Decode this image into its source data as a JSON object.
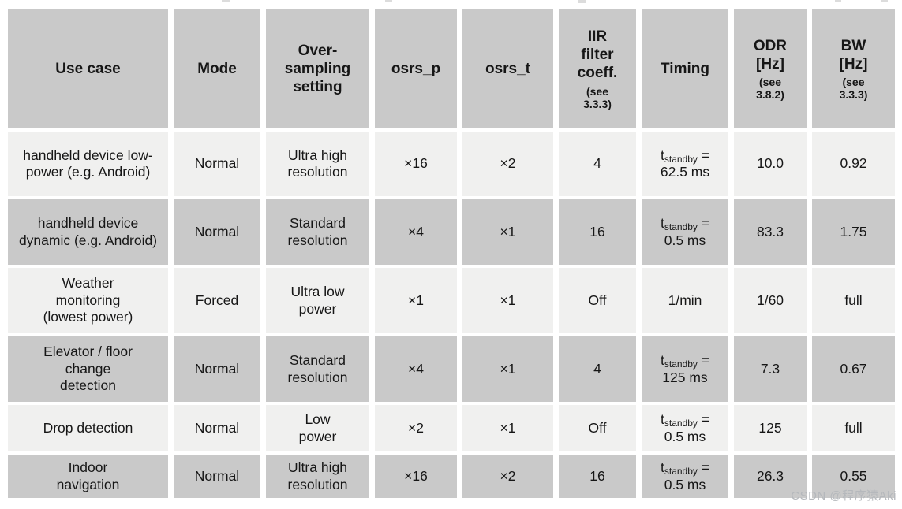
{
  "table": {
    "timing_prefix": "t",
    "timing_sub_label": "standby",
    "timing_equals": "=",
    "columns": [
      {
        "key": "use_case",
        "label": "Use case",
        "note": ""
      },
      {
        "key": "mode",
        "label": "Mode",
        "note": ""
      },
      {
        "key": "oversampling",
        "label": "Over-\nsampling\nsetting",
        "note": ""
      },
      {
        "key": "osrs_p",
        "label": "osrs_p",
        "note": ""
      },
      {
        "key": "osrs_t",
        "label": "osrs_t",
        "note": ""
      },
      {
        "key": "iir",
        "label": "IIR\nfilter\ncoeff.",
        "note": "(see\n3.3.3)"
      },
      {
        "key": "timing",
        "label": "Timing",
        "note": ""
      },
      {
        "key": "odr",
        "label": "ODR\n[Hz]",
        "note": "(see\n3.8.2)"
      },
      {
        "key": "bw",
        "label": "BW\n[Hz]",
        "note": "(see\n3.3.3)"
      }
    ],
    "rows": [
      {
        "use_case": "handheld device low-power (e.g. Android)",
        "mode": "Normal",
        "oversampling": "Ultra high\nresolution",
        "osrs_p": "×16",
        "osrs_t": "×2",
        "iir": "4",
        "timing": {
          "standby_value": "62.5 ms"
        },
        "odr": "10.0",
        "bw": "0.92"
      },
      {
        "use_case": "handheld device dynamic (e.g. Android)",
        "mode": "Normal",
        "oversampling": "Standard\nresolution",
        "osrs_p": "×4",
        "osrs_t": "×1",
        "iir": "16",
        "timing": {
          "standby_value": "0.5 ms"
        },
        "odr": "83.3",
        "bw": "1.75"
      },
      {
        "use_case": "Weather\nmonitoring\n(lowest power)",
        "mode": "Forced",
        "oversampling": "Ultra low\npower",
        "osrs_p": "×1",
        "osrs_t": "×1",
        "iir": "Off",
        "timing": {
          "plain": "1/min"
        },
        "odr": "1/60",
        "bw": "full"
      },
      {
        "use_case": "Elevator / floor\nchange\ndetection",
        "mode": "Normal",
        "oversampling": "Standard\nresolution",
        "osrs_p": "×4",
        "osrs_t": "×1",
        "iir": "4",
        "timing": {
          "standby_value": "125 ms"
        },
        "odr": "7.3",
        "bw": "0.67"
      },
      {
        "use_case": "Drop detection",
        "mode": "Normal",
        "oversampling": "Low\npower",
        "osrs_p": "×2",
        "osrs_t": "×1",
        "iir": "Off",
        "timing": {
          "standby_value": "0.5 ms"
        },
        "odr": "125",
        "bw": "full"
      },
      {
        "use_case": "Indoor\nnavigation",
        "mode": "Normal",
        "oversampling": "Ultra high\nresolution",
        "osrs_p": "×16",
        "osrs_t": "×2",
        "iir": "16",
        "timing": {
          "standby_value": "0.5 ms"
        },
        "odr": "26.3",
        "bw": "0.55"
      }
    ]
  },
  "colors": {
    "header_bg": "#c9c9c9",
    "row_light_bg": "#f0f0ef",
    "row_dark_bg": "#c9c9c9",
    "text": "#161616",
    "watermark": "#b5b8bc"
  },
  "watermark": "CSDN @程序猿Aki"
}
